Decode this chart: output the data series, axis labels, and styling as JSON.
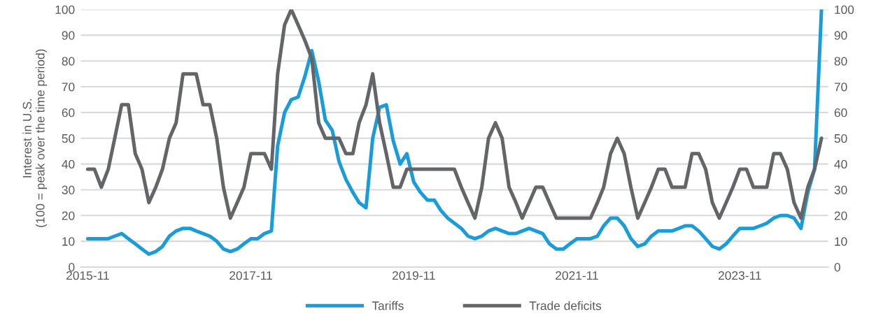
{
  "chart_data": {
    "type": "line",
    "ylabel": "Interest in U.S.\n(100 = peak over the time period)",
    "x": [
      "2015-11",
      "2015-12",
      "2016-01",
      "2016-02",
      "2016-03",
      "2016-04",
      "2016-05",
      "2016-06",
      "2016-07",
      "2016-08",
      "2016-09",
      "2016-10",
      "2016-11",
      "2016-12",
      "2017-01",
      "2017-02",
      "2017-03",
      "2017-04",
      "2017-05",
      "2017-06",
      "2017-07",
      "2017-08",
      "2017-09",
      "2017-10",
      "2017-11",
      "2017-12",
      "2018-01",
      "2018-02",
      "2018-03",
      "2018-04",
      "2018-05",
      "2018-06",
      "2018-07",
      "2018-08",
      "2018-09",
      "2018-10",
      "2018-11",
      "2018-12",
      "2019-01",
      "2019-02",
      "2019-03",
      "2019-04",
      "2019-05",
      "2019-06",
      "2019-07",
      "2019-08",
      "2019-09",
      "2019-10",
      "2019-11",
      "2019-12",
      "2020-01",
      "2020-02",
      "2020-03",
      "2020-04",
      "2020-05",
      "2020-06",
      "2020-07",
      "2020-08",
      "2020-09",
      "2020-10",
      "2020-11",
      "2020-12",
      "2021-01",
      "2021-02",
      "2021-03",
      "2021-04",
      "2021-05",
      "2021-06",
      "2021-07",
      "2021-08",
      "2021-09",
      "2021-10",
      "2021-11",
      "2021-12",
      "2022-01",
      "2022-02",
      "2022-03",
      "2022-04",
      "2022-05",
      "2022-06",
      "2022-07",
      "2022-08",
      "2022-09",
      "2022-10",
      "2022-11",
      "2022-12",
      "2023-01",
      "2023-02",
      "2023-03",
      "2023-04",
      "2023-05",
      "2023-06",
      "2023-07",
      "2023-08",
      "2023-09",
      "2023-10",
      "2023-11",
      "2023-12",
      "2024-01",
      "2024-02",
      "2024-03",
      "2024-04",
      "2024-05",
      "2024-06",
      "2024-07",
      "2024-08",
      "2024-09",
      "2024-10",
      "2024-11"
    ],
    "series": [
      {
        "name": "Tariffs",
        "color": "#1a9cd8",
        "values": [
          11,
          11,
          11,
          11,
          12,
          13,
          11,
          9,
          7,
          5,
          6,
          8,
          12,
          14,
          15,
          15,
          14,
          13,
          12,
          10,
          7,
          6,
          7,
          9,
          11,
          11,
          13,
          14,
          47,
          60,
          65,
          66,
          74,
          84,
          72,
          57,
          53,
          41,
          34,
          29,
          25,
          23,
          50,
          62,
          63,
          49,
          40,
          44,
          33,
          29,
          26,
          26,
          22,
          19,
          17,
          15,
          12,
          11,
          12,
          14,
          15,
          14,
          13,
          13,
          14,
          15,
          14,
          13,
          9,
          7,
          7,
          9,
          11,
          11,
          11,
          12,
          16,
          19,
          19,
          16,
          11,
          8,
          9,
          12,
          14,
          14,
          14,
          15,
          16,
          16,
          14,
          11,
          8,
          7,
          9,
          12,
          15,
          15,
          15,
          16,
          17,
          19,
          20,
          20,
          19,
          15,
          29,
          38,
          100
        ]
      },
      {
        "name": "Trade deficits",
        "color": "#636569",
        "values": [
          38,
          38,
          31,
          38,
          50,
          63,
          63,
          44,
          38,
          25,
          31,
          38,
          50,
          56,
          75,
          75,
          75,
          63,
          63,
          50,
          31,
          19,
          25,
          31,
          44,
          44,
          44,
          38,
          75,
          94,
          100,
          94,
          88,
          81,
          56,
          50,
          50,
          50,
          44,
          44,
          56,
          63,
          75,
          56,
          44,
          31,
          31,
          38,
          38,
          38,
          38,
          38,
          38,
          38,
          38,
          31,
          25,
          19,
          31,
          50,
          56,
          50,
          31,
          25,
          19,
          25,
          31,
          31,
          25,
          19,
          19,
          19,
          19,
          19,
          19,
          25,
          31,
          44,
          50,
          44,
          31,
          19,
          25,
          31,
          38,
          38,
          31,
          31,
          31,
          44,
          44,
          38,
          25,
          19,
          25,
          31,
          38,
          38,
          31,
          31,
          31,
          44,
          44,
          38,
          25,
          19,
          31,
          38,
          50
        ]
      }
    ],
    "xlim": [
      "2015-10",
      "2024-12"
    ],
    "xticks": [
      "2015-11",
      "2017-11",
      "2019-11",
      "2021-11",
      "2023-11"
    ],
    "ylim": [
      0,
      100
    ],
    "yticks": [
      0,
      10,
      20,
      30,
      40,
      50,
      60,
      70,
      80,
      90,
      100
    ],
    "y2lim": [
      0,
      100
    ],
    "y2ticks": [
      0,
      10,
      20,
      30,
      40,
      50,
      60,
      70,
      80,
      90,
      100
    ],
    "grid": "y",
    "legend": "bottom",
    "marker": "none",
    "line_style": "solid"
  }
}
